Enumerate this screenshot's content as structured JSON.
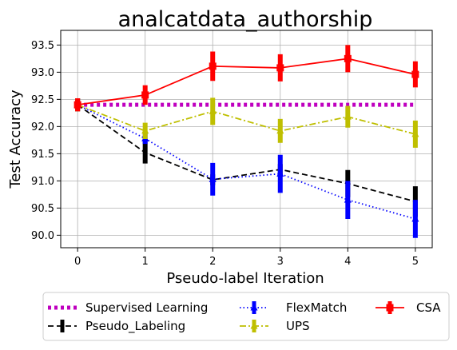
{
  "chart_data": {
    "type": "line",
    "title": "analcatdata_authorship",
    "xlabel": "Pseudo-label Iteration",
    "ylabel": "Test Accuracy",
    "x": [
      0,
      1,
      2,
      3,
      4,
      5
    ],
    "xlim": [
      -0.25,
      5.25
    ],
    "ylim": [
      89.77,
      93.77
    ],
    "xticks": [
      "0",
      "1",
      "2",
      "3",
      "4",
      "5"
    ],
    "yticks": [
      "90.0",
      "90.5",
      "91.0",
      "91.5",
      "92.0",
      "92.5",
      "93.0",
      "93.5"
    ],
    "ytick_values": [
      90.0,
      90.5,
      91.0,
      91.5,
      92.0,
      92.5,
      93.0,
      93.5
    ],
    "grid": true,
    "legend_position": "bottom, outside plot area, 3 columns",
    "series": [
      {
        "name": "Supervised Learning",
        "color": "#bf00bf",
        "line_style": "dotted-thick",
        "marker": "none",
        "values": [
          92.4,
          92.4,
          92.4,
          92.4,
          92.4,
          92.4
        ],
        "errors": [
          0,
          0,
          0,
          0,
          0,
          0
        ]
      },
      {
        "name": "Pseudo_Labeling",
        "color": "#000000",
        "line_style": "dashed",
        "marker": "none",
        "values": [
          92.4,
          91.52,
          91.02,
          91.21,
          90.95,
          90.62
        ],
        "errors": [
          0.12,
          0.2,
          0.1,
          0.1,
          0.25,
          0.28
        ]
      },
      {
        "name": "FlexMatch",
        "color": "#0000ff",
        "line_style": "dotted",
        "marker": "triangle",
        "values": [
          92.4,
          91.78,
          91.03,
          91.13,
          90.65,
          90.3
        ],
        "errors": [
          0.12,
          0.1,
          0.3,
          0.35,
          0.35,
          0.35
        ]
      },
      {
        "name": "UPS",
        "color": "#bfbf00",
        "line_style": "dashdot",
        "marker": "triangle",
        "values": [
          92.4,
          91.92,
          92.28,
          91.92,
          92.18,
          91.86
        ],
        "errors": [
          0.12,
          0.15,
          0.25,
          0.22,
          0.2,
          0.25
        ]
      },
      {
        "name": "CSA",
        "color": "#ff0000",
        "line_style": "solid",
        "marker": "square",
        "values": [
          92.4,
          92.58,
          93.11,
          93.08,
          93.25,
          92.96
        ],
        "errors": [
          0.12,
          0.18,
          0.27,
          0.25,
          0.25,
          0.24
        ]
      }
    ]
  }
}
